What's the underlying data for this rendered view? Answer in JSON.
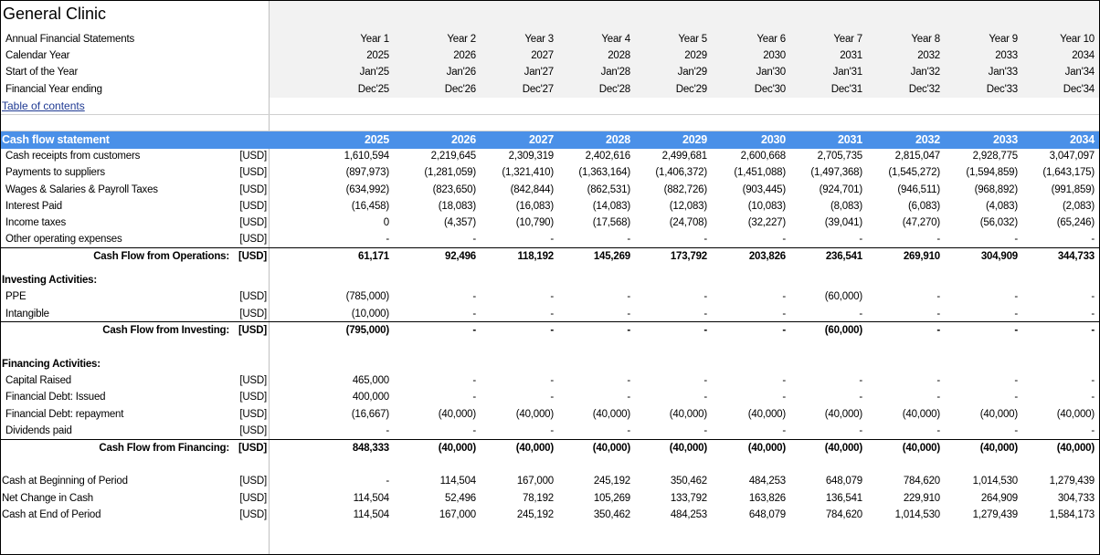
{
  "title": "General Clinic",
  "table_of_contents_link": "Table of contents",
  "header_rows": [
    {
      "label": "Annual Financial Statements",
      "values": [
        "Year 1",
        "Year 2",
        "Year 3",
        "Year 4",
        "Year 5",
        "Year 6",
        "Year 7",
        "Year 8",
        "Year 9",
        "Year 10"
      ]
    },
    {
      "label": "Calendar Year",
      "values": [
        "2025",
        "2026",
        "2027",
        "2028",
        "2029",
        "2030",
        "2031",
        "2032",
        "2033",
        "2034"
      ]
    },
    {
      "label": "Start of the Year",
      "values": [
        "Jan'25",
        "Jan'26",
        "Jan'27",
        "Jan'28",
        "Jan'29",
        "Jan'30",
        "Jan'31",
        "Jan'32",
        "Jan'33",
        "Jan'34"
      ]
    },
    {
      "label": "Financial Year ending",
      "values": [
        "Dec'25",
        "Dec'26",
        "Dec'27",
        "Dec'28",
        "Dec'29",
        "Dec'30",
        "Dec'31",
        "Dec'32",
        "Dec'33",
        "Dec'34"
      ]
    }
  ],
  "cash_flow_header": {
    "label": "Cash flow statement",
    "years": [
      "2025",
      "2026",
      "2027",
      "2028",
      "2029",
      "2030",
      "2031",
      "2032",
      "2033",
      "2034"
    ]
  },
  "unit": "[USD]",
  "operations": [
    {
      "label": "Cash receipts from customers",
      "values": [
        "1,610,594",
        "2,219,645",
        "2,309,319",
        "2,402,616",
        "2,499,681",
        "2,600,668",
        "2,705,735",
        "2,815,047",
        "2,928,775",
        "3,047,097"
      ]
    },
    {
      "label": "Payments to suppliers",
      "values": [
        "(897,973)",
        "(1,281,059)",
        "(1,321,410)",
        "(1,363,164)",
        "(1,406,372)",
        "(1,451,088)",
        "(1,497,368)",
        "(1,545,272)",
        "(1,594,859)",
        "(1,643,175)"
      ]
    },
    {
      "label": "Wages & Salaries & Payroll Taxes",
      "values": [
        "(634,992)",
        "(823,650)",
        "(842,844)",
        "(862,531)",
        "(882,726)",
        "(903,445)",
        "(924,701)",
        "(946,511)",
        "(968,892)",
        "(991,859)"
      ]
    },
    {
      "label": "Interest Paid",
      "values": [
        "(16,458)",
        "(18,083)",
        "(16,083)",
        "(14,083)",
        "(12,083)",
        "(10,083)",
        "(8,083)",
        "(6,083)",
        "(4,083)",
        "(2,083)"
      ]
    },
    {
      "label": "Income taxes",
      "values": [
        "0",
        "(4,357)",
        "(10,790)",
        "(17,568)",
        "(24,708)",
        "(32,227)",
        "(39,041)",
        "(47,270)",
        "(56,032)",
        "(65,246)"
      ]
    },
    {
      "label": "Other operating expenses",
      "values": [
        "-",
        "-",
        "-",
        "-",
        "-",
        "-",
        "-",
        "-",
        "-",
        "-"
      ]
    }
  ],
  "operations_total": {
    "label": "Cash Flow from Operations:",
    "values": [
      "61,171",
      "92,496",
      "118,192",
      "145,269",
      "173,792",
      "203,826",
      "236,541",
      "269,910",
      "304,909",
      "344,733"
    ]
  },
  "investing_heading": "Investing Activities:",
  "investing": [
    {
      "label": "PPE",
      "values": [
        "(785,000)",
        "-",
        "-",
        "-",
        "-",
        "-",
        "(60,000)",
        "-",
        "-",
        "-"
      ]
    },
    {
      "label": "Intangible",
      "values": [
        "(10,000)",
        "-",
        "-",
        "-",
        "-",
        "-",
        "-",
        "-",
        "-",
        "-"
      ]
    }
  ],
  "investing_total": {
    "label": "Cash Flow from Investing:",
    "values": [
      "(795,000)",
      "-",
      "-",
      "-",
      "-",
      "-",
      "(60,000)",
      "-",
      "-",
      "-"
    ]
  },
  "financing_heading": "Financing Activities:",
  "financing": [
    {
      "label": "Capital Raised",
      "values": [
        "465,000",
        "-",
        "-",
        "-",
        "-",
        "-",
        "-",
        "-",
        "-",
        "-"
      ]
    },
    {
      "label": "Financial Debt: Issued",
      "values": [
        "400,000",
        "-",
        "-",
        "-",
        "-",
        "-",
        "-",
        "-",
        "-",
        "-"
      ]
    },
    {
      "label": "Financial Debt: repayment",
      "values": [
        "(16,667)",
        "(40,000)",
        "(40,000)",
        "(40,000)",
        "(40,000)",
        "(40,000)",
        "(40,000)",
        "(40,000)",
        "(40,000)",
        "(40,000)"
      ]
    },
    {
      "label": "Dividends paid",
      "values": [
        "-",
        "-",
        "-",
        "-",
        "-",
        "-",
        "-",
        "-",
        "-",
        "-"
      ]
    }
  ],
  "financing_total": {
    "label": "Cash Flow from Financing:",
    "values": [
      "848,333",
      "(40,000)",
      "(40,000)",
      "(40,000)",
      "(40,000)",
      "(40,000)",
      "(40,000)",
      "(40,000)",
      "(40,000)",
      "(40,000)"
    ]
  },
  "cash_summary": [
    {
      "label": "Cash at Beginning of Period",
      "values": [
        "-",
        "114,504",
        "167,000",
        "245,192",
        "350,462",
        "484,253",
        "648,079",
        "784,620",
        "1,014,530",
        "1,279,439"
      ]
    },
    {
      "label": "Net Change in Cash",
      "values": [
        "114,504",
        "52,496",
        "78,192",
        "105,269",
        "133,792",
        "163,826",
        "136,541",
        "229,910",
        "264,909",
        "304,733"
      ]
    },
    {
      "label": "Cash at End of Period",
      "values": [
        "114,504",
        "167,000",
        "245,192",
        "350,462",
        "484,253",
        "648,079",
        "784,620",
        "1,014,530",
        "1,279,439",
        "1,584,173"
      ]
    }
  ]
}
